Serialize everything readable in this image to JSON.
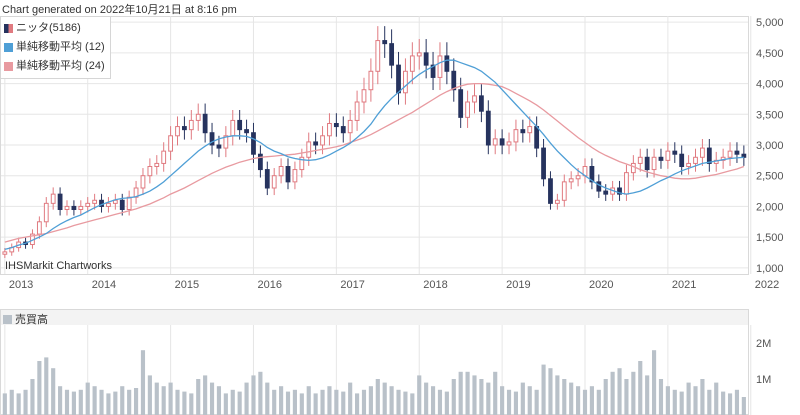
{
  "header": {
    "generated": "Chart generated on 2022年10月21日 at 8:16 pm"
  },
  "credit": "IHSMarkit Chartworks",
  "colors": {
    "up": "#e07a80",
    "down": "#26335e",
    "ma12": "#4f9fd6",
    "ma24": "#e89aa0",
    "volume": "#b9c1c9",
    "grid": "#e6e6e6"
  },
  "legend": [
    {
      "label": "ニッタ(5186)",
      "icon": "candlestick-icon"
    },
    {
      "label": "単純移動平均 (12)",
      "icon": "ma12-swatch-icon"
    },
    {
      "label": "単純移動平均 (24)",
      "icon": "ma24-swatch-icon"
    }
  ],
  "volume_legend": {
    "label": "売買高",
    "icon": "volume-swatch-icon"
  },
  "chart_data": [
    {
      "type": "candlestick",
      "series_name": "ニッタ(5186)",
      "interval": "monthly",
      "x_tick_labels": [
        "2013",
        "2014",
        "2015",
        "2016",
        "2017",
        "2018",
        "2019",
        "2020",
        "2021",
        "2022"
      ],
      "y_tick_labels": [
        "1,000",
        "1,500",
        "2,000",
        "2,500",
        "3,000",
        "3,500",
        "4,000",
        "4,500",
        "5,000"
      ],
      "ylim": [
        900,
        5100
      ],
      "grid": true,
      "moving_averages": [
        "単純移動平均 (12)",
        "単純移動平均 (24)"
      ],
      "close": [
        1260,
        1330,
        1420,
        1380,
        1550,
        1750,
        2050,
        2200,
        1950,
        2000,
        1950,
        2000,
        2050,
        2100,
        2000,
        2050,
        2100,
        1950,
        2150,
        2300,
        2500,
        2650,
        2700,
        2900,
        3150,
        3300,
        3250,
        3400,
        3500,
        3200,
        3000,
        2950,
        3150,
        3400,
        3250,
        3200,
        2850,
        2600,
        2300,
        2500,
        2650,
        2400,
        2600,
        2800,
        3050,
        3000,
        3150,
        3350,
        3300,
        3200,
        3400,
        3700,
        3900,
        4200,
        4700,
        4650,
        4300,
        3850,
        4200,
        4450,
        4500,
        4300,
        4100,
        4450,
        4200,
        3900,
        3450,
        3700,
        3800,
        3550,
        3000,
        3100,
        3000,
        3050,
        3250,
        3200,
        3300,
        2950,
        2450,
        2050,
        2100,
        2400,
        2450,
        2500,
        2650,
        2400,
        2250,
        2200,
        2300,
        2200,
        2550,
        2700,
        2800,
        2600,
        2800,
        2750,
        2900,
        2850,
        2650,
        2700,
        2800,
        2950,
        2700,
        2750,
        2800,
        2900,
        2850,
        2800
      ],
      "ma12": [
        1300,
        1330,
        1370,
        1400,
        1450,
        1500,
        1560,
        1640,
        1710,
        1770,
        1820,
        1860,
        1920,
        1980,
        2030,
        2070,
        2110,
        2130,
        2140,
        2160,
        2200,
        2250,
        2320,
        2400,
        2500,
        2600,
        2700,
        2800,
        2900,
        2980,
        3050,
        3100,
        3130,
        3150,
        3150,
        3140,
        3100,
        3040,
        2960,
        2900,
        2860,
        2810,
        2780,
        2760,
        2750,
        2760,
        2790,
        2840,
        2900,
        2960,
        3030,
        3120,
        3220,
        3340,
        3500,
        3640,
        3760,
        3860,
        3960,
        4060,
        4150,
        4220,
        4280,
        4340,
        4380,
        4380,
        4340,
        4300,
        4260,
        4200,
        4110,
        4020,
        3900,
        3780,
        3660,
        3540,
        3420,
        3300,
        3170,
        3030,
        2900,
        2790,
        2680,
        2580,
        2500,
        2420,
        2350,
        2300,
        2260,
        2220,
        2200,
        2220,
        2250,
        2300,
        2360,
        2420,
        2470,
        2530,
        2580,
        2620,
        2660,
        2700,
        2720,
        2740,
        2760,
        2780,
        2790,
        2800
      ],
      "ma24": [
        1420,
        1450,
        1480,
        1500,
        1520,
        1540,
        1560,
        1590,
        1620,
        1650,
        1690,
        1720,
        1750,
        1780,
        1810,
        1840,
        1870,
        1900,
        1930,
        1960,
        2000,
        2040,
        2090,
        2140,
        2200,
        2250,
        2300,
        2360,
        2420,
        2480,
        2540,
        2590,
        2640,
        2680,
        2720,
        2750,
        2780,
        2800,
        2810,
        2820,
        2830,
        2840,
        2850,
        2870,
        2890,
        2910,
        2930,
        2950,
        2970,
        3000,
        3040,
        3080,
        3120,
        3170,
        3230,
        3290,
        3350,
        3410,
        3470,
        3530,
        3600,
        3670,
        3740,
        3810,
        3870,
        3920,
        3960,
        3990,
        4000,
        4000,
        3990,
        3970,
        3950,
        3900,
        3840,
        3780,
        3720,
        3650,
        3570,
        3480,
        3390,
        3300,
        3210,
        3120,
        3040,
        2960,
        2890,
        2830,
        2780,
        2730,
        2690,
        2650,
        2600,
        2560,
        2530,
        2500,
        2480,
        2460,
        2450,
        2450,
        2460,
        2480,
        2500,
        2520,
        2550,
        2580,
        2610,
        2650
      ]
    },
    {
      "type": "bar",
      "series_name": "売買高",
      "y_tick_labels": [
        "1M",
        "2M"
      ],
      "ylim": [
        0,
        2500000
      ],
      "values": [
        600000,
        700000,
        600000,
        700000,
        1000000,
        1500000,
        1600000,
        1300000,
        800000,
        700000,
        650000,
        700000,
        900000,
        800000,
        700000,
        600000,
        650000,
        800000,
        700000,
        750000,
        1800000,
        1100000,
        900000,
        800000,
        900000,
        700000,
        650000,
        600000,
        1000000,
        1100000,
        900000,
        800000,
        600000,
        700000,
        650000,
        900000,
        1100000,
        1200000,
        900000,
        700000,
        800000,
        650000,
        700000,
        600000,
        800000,
        600000,
        700000,
        800000,
        700000,
        650000,
        900000,
        600000,
        700000,
        800000,
        1000000,
        900000,
        800000,
        700000,
        650000,
        600000,
        1100000,
        900000,
        800000,
        700000,
        650000,
        1000000,
        1200000,
        1200000,
        1100000,
        1000000,
        900000,
        1200000,
        800000,
        700000,
        650000,
        900000,
        800000,
        700000,
        1400000,
        1300000,
        1100000,
        1000000,
        900000,
        800000,
        700000,
        800000,
        700000,
        1000000,
        1200000,
        1300000,
        1000000,
        1200000,
        1500000,
        1100000,
        1800000,
        1000000,
        800000,
        700000,
        650000,
        900000,
        800000,
        1000000,
        700000,
        900000,
        650000,
        600000,
        700000,
        500000
      ]
    }
  ]
}
